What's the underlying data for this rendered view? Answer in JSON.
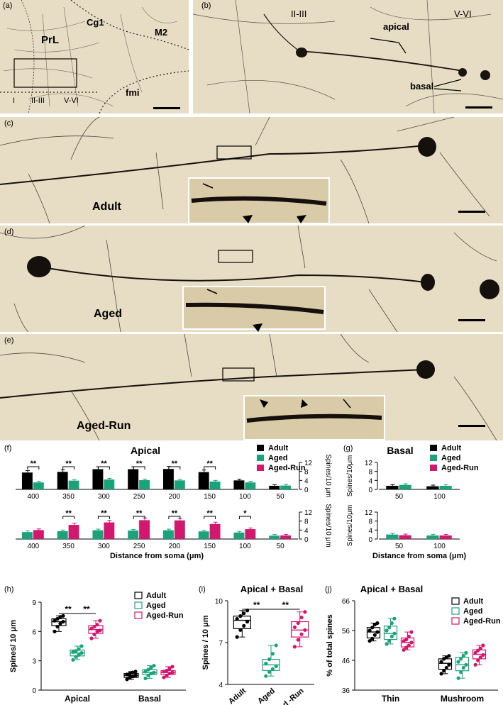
{
  "panel_labels": {
    "a": "(a)",
    "b": "(b)",
    "c": "(c)",
    "d": "(d)",
    "e": "(e)",
    "f": "(f)",
    "g": "(g)",
    "h": "(h)",
    "i": "(i)",
    "j": "(j)"
  },
  "micro_a": {
    "prl": "PrL",
    "cg1": "Cg1",
    "m2": "M2",
    "fmi": "fmi",
    "layer1": "I",
    "layer23": "II-III",
    "layer56": "V-VI"
  },
  "micro_b": {
    "layer23": "II-III",
    "layer56": "V-VI",
    "apical": "apical",
    "basal": "basal"
  },
  "micro_c": {
    "group": "Adult"
  },
  "micro_d": {
    "group": "Aged"
  },
  "micro_e": {
    "group": "Aged-Run"
  },
  "colors": {
    "adult": "#000000",
    "aged": "#1aa37a",
    "aged_run": "#d2176e"
  },
  "chart_data": [
    {
      "id": "f",
      "type": "bar",
      "title": "Apical",
      "legend": [
        "Adult",
        "Aged",
        "Aged-Run"
      ],
      "ylabel_top": "Spines/10 μm",
      "ylabel_bottom": "Spines/10 μm",
      "xlabel": "Distance from soma (μm)",
      "categories": [
        "400",
        "350",
        "300",
        "250",
        "200",
        "150",
        "100",
        "50"
      ],
      "ylim": [
        0,
        12
      ],
      "yticks": [
        "0",
        "4",
        "8",
        "12"
      ],
      "top_series": [
        {
          "name": "Adult",
          "values": [
            7.5,
            7.8,
            9.0,
            9.0,
            9.1,
            7.7,
            4.0,
            1.6
          ]
        },
        {
          "name": "Aged",
          "values": [
            3.1,
            3.9,
            4.4,
            4.1,
            4.0,
            3.5,
            3.1,
            1.7
          ]
        }
      ],
      "top_sig": [
        "**",
        "**",
        "**",
        "**",
        "**",
        "**",
        "",
        ""
      ],
      "bottom_series": [
        {
          "name": "Aged",
          "values": [
            3.1,
            3.5,
            3.9,
            3.8,
            3.9,
            3.4,
            2.9,
            1.5
          ]
        },
        {
          "name": "Aged-Run",
          "values": [
            4.0,
            6.3,
            7.4,
            8.4,
            8.3,
            6.7,
            4.4,
            1.6
          ]
        }
      ],
      "bottom_sig": [
        "",
        "**",
        "**",
        "**",
        "**",
        "**",
        "*",
        ""
      ]
    },
    {
      "id": "g",
      "type": "bar",
      "title": "Basal",
      "legend": [
        "Adult",
        "Aged",
        "Aged-Run"
      ],
      "ylabel_top": "Spines/10μm",
      "ylabel_bottom": "Spines/10μm",
      "xlabel": "Distance from soma (μm)",
      "categories": [
        "50",
        "100"
      ],
      "ylim": [
        0,
        12
      ],
      "yticks": [
        "0",
        "4",
        "8",
        "12"
      ],
      "top_series": [
        {
          "name": "Adult",
          "values": [
            1.6,
            1.4
          ]
        },
        {
          "name": "Aged",
          "values": [
            2.0,
            1.6
          ]
        }
      ],
      "bottom_series": [
        {
          "name": "Aged",
          "values": [
            2.0,
            1.6
          ]
        },
        {
          "name": "Aged-Run",
          "values": [
            1.7,
            1.6
          ]
        }
      ]
    },
    {
      "id": "h",
      "type": "box",
      "legend": [
        "Adult",
        "Aged",
        "Aged-Run"
      ],
      "ylabel": "Spines/ 10 μm",
      "categories": [
        "Apical",
        "Basal"
      ],
      "ylim": [
        0,
        9
      ],
      "yticks": [
        "0",
        "3",
        "6",
        "9"
      ],
      "groups": [
        {
          "name": "Adult",
          "boxes": [
            {
              "min": 6.0,
              "q1": 6.6,
              "med": 7.0,
              "q3": 7.3,
              "max": 7.6,
              "points": [
                6.0,
                6.5,
                6.8,
                7.0,
                7.1,
                7.3,
                7.5,
                7.6
              ]
            },
            {
              "min": 1.1,
              "q1": 1.3,
              "med": 1.5,
              "q3": 1.7,
              "max": 1.9,
              "points": [
                1.1,
                1.3,
                1.4,
                1.5,
                1.6,
                1.7,
                1.8,
                1.9
              ]
            }
          ]
        },
        {
          "name": "Aged",
          "boxes": [
            {
              "min": 3.1,
              "q1": 3.5,
              "med": 3.8,
              "q3": 4.1,
              "max": 4.5,
              "points": [
                3.1,
                3.4,
                3.6,
                3.8,
                3.9,
                4.0,
                4.2,
                4.5
              ]
            },
            {
              "min": 1.2,
              "q1": 1.6,
              "med": 1.8,
              "q3": 2.1,
              "max": 2.5,
              "points": [
                1.2,
                1.5,
                1.7,
                1.8,
                1.9,
                2.1,
                2.3,
                2.5
              ]
            }
          ]
        },
        {
          "name": "Aged-Run",
          "boxes": [
            {
              "min": 5.3,
              "q1": 5.8,
              "med": 6.2,
              "q3": 6.6,
              "max": 7.1,
              "points": [
                5.3,
                5.7,
                6.0,
                6.1,
                6.3,
                6.5,
                6.7,
                7.1
              ]
            },
            {
              "min": 1.3,
              "q1": 1.6,
              "med": 1.8,
              "q3": 2.0,
              "max": 2.4,
              "points": [
                1.3,
                1.5,
                1.7,
                1.8,
                1.9,
                2.0,
                2.2,
                2.4
              ]
            }
          ]
        }
      ],
      "sig": [
        {
          "label": "**",
          "from": 0,
          "to": 1
        },
        {
          "label": "**",
          "from": 1,
          "to": 2
        }
      ]
    },
    {
      "id": "i",
      "type": "box",
      "title": "Apical + Basal",
      "ylabel": "Spines / 10 μm",
      "categories": [
        "Adult",
        "Aged",
        "Aged -Run"
      ],
      "ylim": [
        4,
        10
      ],
      "yticks": [
        "4",
        "7",
        "10"
      ],
      "groups": [
        {
          "name": "Adult",
          "boxes": [
            {
              "min": 7.4,
              "q1": 8.0,
              "med": 8.6,
              "q3": 8.9,
              "max": 9.3,
              "points": [
                7.4,
                7.9,
                8.2,
                8.5,
                8.7,
                8.9,
                9.1,
                9.3
              ]
            }
          ]
        },
        {
          "name": "Aged",
          "boxes": [
            {
              "min": 4.6,
              "q1": 5.0,
              "med": 5.4,
              "q3": 5.8,
              "max": 6.8,
              "points": [
                4.6,
                4.9,
                5.1,
                5.3,
                5.5,
                5.8,
                6.2,
                6.8
              ]
            }
          ]
        },
        {
          "name": "Aged-Run",
          "boxes": [
            {
              "min": 6.7,
              "q1": 7.4,
              "med": 7.9,
              "q3": 8.5,
              "max": 9.2,
              "points": [
                6.7,
                7.2,
                7.6,
                7.9,
                8.1,
                8.4,
                8.8,
                9.2
              ]
            }
          ]
        }
      ],
      "sig": [
        {
          "label": "**",
          "from": 0,
          "to": 1
        },
        {
          "label": "**",
          "from": 1,
          "to": 2
        }
      ]
    },
    {
      "id": "j",
      "type": "box",
      "title": "Apical + Basal",
      "legend": [
        "Adult",
        "Aged",
        "Aged-Run"
      ],
      "ylabel": "% of total spines",
      "categories": [
        "Thin",
        "Mushroom"
      ],
      "ylim": [
        36,
        66
      ],
      "yticks": [
        "36",
        "46",
        "56",
        "66"
      ],
      "groups": [
        {
          "name": "Adult",
          "boxes": [
            {
              "min": 52.5,
              "q1": 53.5,
              "med": 55.5,
              "q3": 57.0,
              "max": 58.5,
              "points": [
                52.5,
                53.3,
                54.5,
                55.5,
                56.0,
                57.0,
                58.0,
                58.5
              ]
            },
            {
              "min": 41.5,
              "q1": 43.0,
              "med": 45.0,
              "q3": 46.5,
              "max": 47.5,
              "points": [
                41.5,
                42.5,
                43.5,
                44.5,
                45.5,
                46.5,
                47.0,
                47.5
              ]
            }
          ]
        },
        {
          "name": "Aged",
          "boxes": [
            {
              "min": 51.5,
              "q1": 53.0,
              "med": 55.0,
              "q3": 57.5,
              "max": 60.0,
              "points": [
                51.5,
                52.5,
                54.0,
                55.0,
                56.0,
                57.0,
                58.5,
                60.0
              ]
            },
            {
              "min": 40.0,
              "q1": 42.5,
              "med": 44.5,
              "q3": 47.0,
              "max": 48.5,
              "points": [
                40.0,
                42.0,
                43.5,
                44.5,
                45.5,
                46.5,
                47.5,
                48.5
              ]
            }
          ]
        },
        {
          "name": "Aged-Run",
          "boxes": [
            {
              "min": 49.5,
              "q1": 50.5,
              "med": 52.0,
              "q3": 53.5,
              "max": 55.5,
              "points": [
                49.5,
                50.3,
                51.0,
                52.0,
                52.5,
                53.0,
                54.0,
                55.5
              ]
            },
            {
              "min": 44.5,
              "q1": 46.5,
              "med": 48.0,
              "q3": 49.5,
              "max": 51.0,
              "points": [
                44.5,
                46.0,
                47.0,
                47.8,
                48.5,
                49.3,
                50.0,
                51.0
              ]
            }
          ]
        }
      ]
    }
  ]
}
